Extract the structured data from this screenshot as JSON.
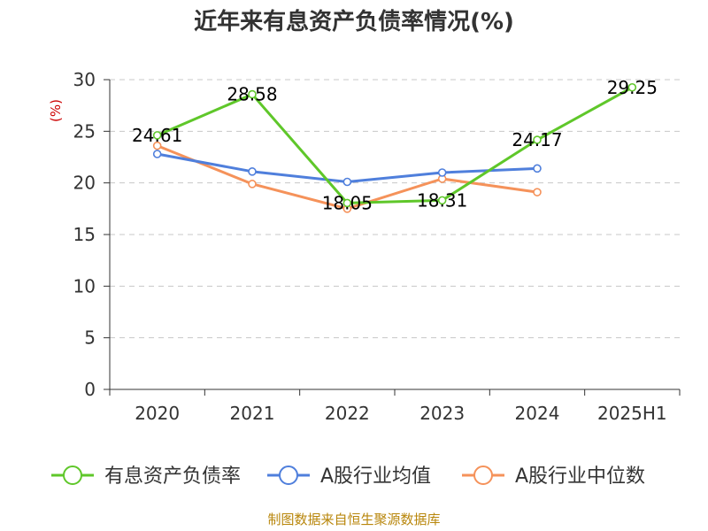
{
  "chart_data": {
    "type": "line",
    "title": "近年来有息资产负债率情况(%)",
    "ylabel": "(%)",
    "categories": [
      "2020",
      "2021",
      "2022",
      "2023",
      "2024",
      "2025H1"
    ],
    "ylim": [
      0,
      30
    ],
    "yticks": [
      0,
      5,
      10,
      15,
      20,
      25,
      30
    ],
    "grid": true,
    "legend_position": "bottom",
    "series": [
      {
        "name": "有息资产负债率",
        "color": "#5fc72a",
        "values": [
          24.61,
          28.58,
          18.05,
          18.31,
          24.17,
          29.25
        ],
        "labels": [
          "24.61",
          "28.58",
          "18.05",
          "18.31",
          "24.17",
          "29.25"
        ]
      },
      {
        "name": "A股行业均值",
        "color": "#4f7fdc",
        "values": [
          22.8,
          21.1,
          20.1,
          21.0,
          21.4,
          null
        ]
      },
      {
        "name": "A股行业中位数",
        "color": "#f5925a",
        "values": [
          23.6,
          19.9,
          17.5,
          20.4,
          19.1,
          null
        ]
      }
    ],
    "source": "制图数据来自恒生聚源数据库"
  }
}
